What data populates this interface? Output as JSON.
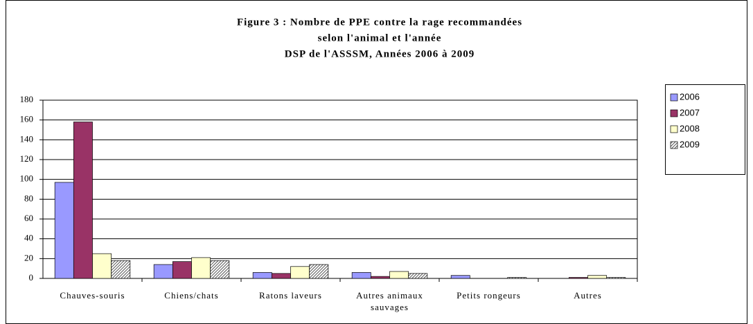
{
  "chart_data": {
    "type": "bar",
    "title": [
      "Figure 3 : Nombre de PPE contre la rage recommandées",
      "selon l'animal et l'année",
      "DSP de l'ASSSM, Années 2006 à 2009"
    ],
    "categories": [
      "Chauves-souris",
      "Chiens/chats",
      "Ratons laveurs",
      "Autres animaux sauvages",
      "Petits rongeurs",
      "Autres"
    ],
    "series": [
      {
        "name": "2006",
        "color": "#9999ff",
        "values": [
          97,
          14,
          6,
          6,
          3,
          0
        ]
      },
      {
        "name": "2007",
        "color": "#993366",
        "values": [
          158,
          17,
          5,
          2,
          0,
          1
        ]
      },
      {
        "name": "2008",
        "color": "#ffffcc",
        "values": [
          25,
          21,
          12,
          7,
          0,
          3
        ]
      },
      {
        "name": "2009",
        "color": "#808080",
        "pattern": "hatch",
        "values": [
          18,
          18,
          14,
          5,
          1,
          1
        ]
      }
    ],
    "ylim": [
      0,
      180
    ],
    "yticks": [
      0,
      20,
      40,
      60,
      80,
      100,
      120,
      140,
      160,
      180
    ],
    "grid": true,
    "legend": "right"
  }
}
